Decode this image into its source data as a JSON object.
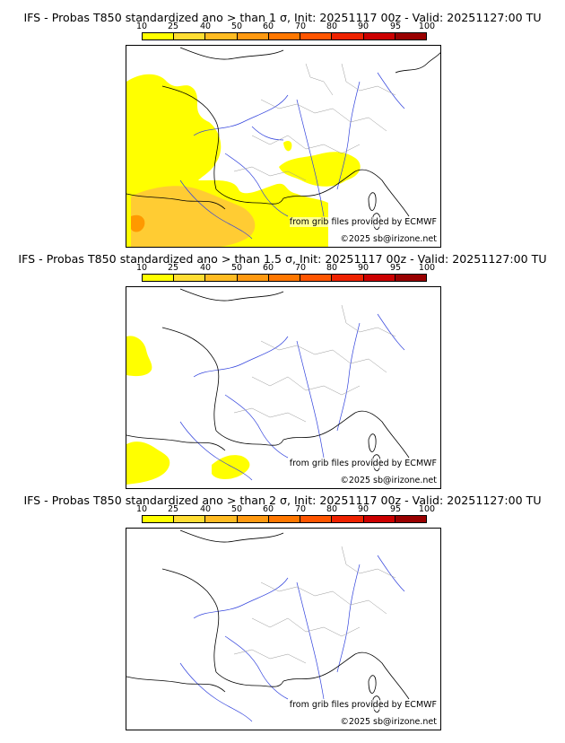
{
  "colors": {
    "yellow": "#ffff00",
    "light_orange": "#ffcc33",
    "orange": "#ff9900",
    "scale": [
      "#ffff00",
      "#ffdd33",
      "#ffbb22",
      "#ff9911",
      "#ff7700",
      "#ff5500",
      "#ee2200",
      "#cc0000",
      "#990000",
      "#550000"
    ],
    "rivers": "#3344dd",
    "borders": "#999999",
    "coast": "#000000"
  },
  "colorbar": {
    "ticks": [
      "10",
      "25",
      "40",
      "50",
      "60",
      "70",
      "80",
      "90",
      "95",
      "100"
    ]
  },
  "panels": [
    {
      "title": "IFS - Probas T850  standardized ano > than 1 σ, Init: 20251117 00z - Valid: 20251127:00 TU"
    },
    {
      "title": "IFS - Probas T850  standardized ano > than 1.5 σ, Init: 20251117 00z - Valid: 20251127:00 TU"
    },
    {
      "title": "IFS - Probas T850  standardized ano > than 2 σ, Init: 20251117 00z - Valid: 20251127:00 TU"
    }
  ],
  "credits": {
    "source": "from grib files provided by ECMWF",
    "copyright": "©2025 sb@irizone.net"
  }
}
